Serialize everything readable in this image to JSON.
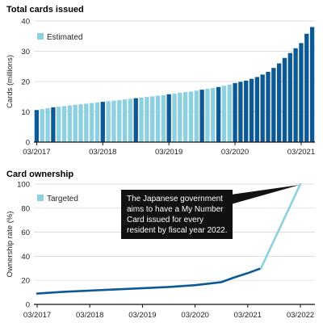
{
  "chart_data": [
    {
      "type": "bar",
      "title": "Total cards issued",
      "ylabel": "Cards (millions)",
      "ylim": [
        0,
        40
      ],
      "yticks": [
        0,
        10,
        20,
        30,
        40
      ],
      "xtick_labels": [
        "03/2017",
        "03/2018",
        "03/2019",
        "03/2020",
        "03/2021"
      ],
      "legend": {
        "label": "Estimated",
        "placement": "top-left"
      },
      "colors": {
        "actual": "#0b5a96",
        "estimated": "#8dd0e0"
      },
      "months": [
        "03/2017",
        "04/2017",
        "05/2017",
        "06/2017",
        "07/2017",
        "08/2017",
        "09/2017",
        "10/2017",
        "11/2017",
        "12/2017",
        "01/2018",
        "02/2018",
        "03/2018",
        "04/2018",
        "05/2018",
        "06/2018",
        "07/2018",
        "08/2018",
        "09/2018",
        "10/2018",
        "11/2018",
        "12/2018",
        "01/2019",
        "02/2019",
        "03/2019",
        "04/2019",
        "05/2019",
        "06/2019",
        "07/2019",
        "08/2019",
        "09/2019",
        "10/2019",
        "11/2019",
        "12/2019",
        "01/2020",
        "02/2020",
        "03/2020",
        "04/2020",
        "05/2020",
        "06/2020",
        "07/2020",
        "08/2020",
        "09/2020",
        "10/2020",
        "11/2020",
        "12/2020",
        "01/2021",
        "02/2021",
        "03/2021",
        "04/2021",
        "05/2021"
      ],
      "values": [
        10.6,
        10.9,
        11.2,
        11.5,
        11.7,
        11.9,
        12.1,
        12.3,
        12.5,
        12.7,
        12.9,
        13.1,
        13.3,
        13.5,
        13.7,
        13.9,
        14.1,
        14.3,
        14.5,
        14.7,
        14.9,
        15.1,
        15.3,
        15.5,
        15.8,
        16.0,
        16.3,
        16.5,
        16.7,
        17.0,
        17.3,
        17.6,
        17.9,
        18.2,
        18.6,
        19.0,
        19.5,
        19.9,
        20.3,
        20.9,
        21.5,
        22.3,
        23.2,
        24.5,
        26.0,
        27.8,
        29.4,
        31.0,
        32.7,
        35.8,
        38.0
      ],
      "estimated": [
        false,
        true,
        true,
        false,
        true,
        true,
        true,
        true,
        true,
        true,
        true,
        true,
        false,
        true,
        true,
        true,
        true,
        true,
        false,
        true,
        true,
        true,
        true,
        true,
        false,
        true,
        true,
        true,
        true,
        true,
        false,
        true,
        true,
        false,
        true,
        true,
        false,
        false,
        false,
        false,
        false,
        false,
        false,
        false,
        false,
        false,
        false,
        false,
        false,
        false,
        false
      ]
    },
    {
      "type": "line",
      "title": "Card ownership",
      "ylabel": "Ownership rate (%)",
      "ylim": [
        0,
        100
      ],
      "yticks": [
        0,
        20,
        40,
        60,
        80,
        100
      ],
      "xtick_labels": [
        "03/2017",
        "03/2018",
        "03/2019",
        "03/2020",
        "03/2021",
        "03/2022"
      ],
      "legend": {
        "label": "Targeted",
        "placement": "top-left"
      },
      "colors": {
        "actual": "#0b5a96",
        "targeted": "#8dd0e0"
      },
      "series": [
        {
          "x": [
            "03/2017",
            "09/2017",
            "03/2018",
            "09/2018",
            "03/2019",
            "09/2019",
            "03/2020",
            "09/2020",
            "12/2020",
            "03/2021",
            "06/2021"
          ],
          "values": [
            9.0,
            10.5,
            11.5,
            12.5,
            13.5,
            14.5,
            16.0,
            18.5,
            22.5,
            26.0,
            30.0
          ]
        },
        {
          "x": [
            "06/2021",
            "03/2022"
          ],
          "values": [
            30.0,
            100
          ]
        }
      ],
      "annotation": {
        "text_lines": [
          "The Japanese government",
          "aims to have a My Number",
          "Card issued for every",
          "resident by fiscal year 2022."
        ],
        "points_to": {
          "x": "03/2022",
          "value": 100
        }
      }
    }
  ]
}
